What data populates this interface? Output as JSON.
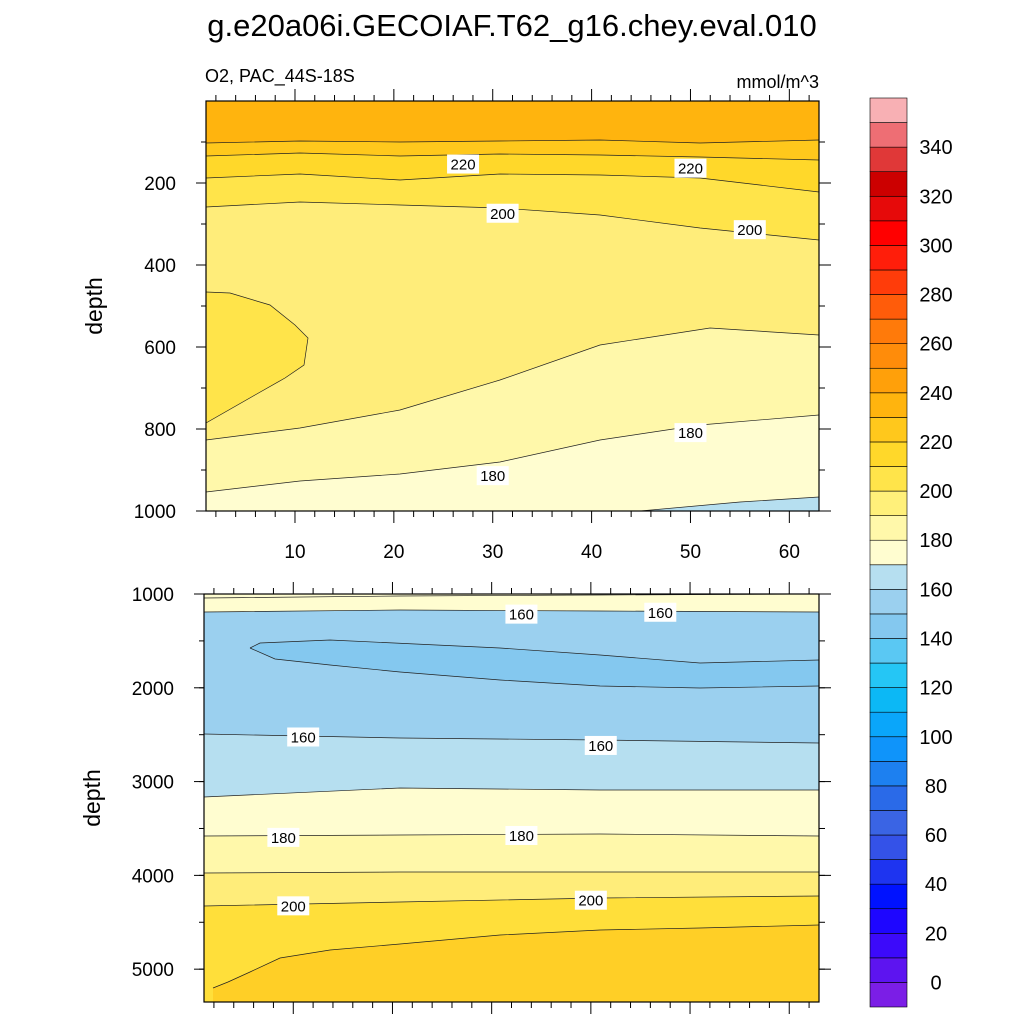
{
  "title": "g.e20a06i.GECOIAF.T62_g16.chey.eval.010",
  "chart_data": {
    "type": "contour",
    "variable": "O2",
    "region": "PAC_44S-18S",
    "left_string": "O2, PAC_44S-18S",
    "units": "mmol/m^3",
    "x_range": [
      1,
      63
    ],
    "x_ticks": [
      "10",
      "20",
      "30",
      "40",
      "50",
      "60"
    ],
    "contour_interval": 10,
    "panels": [
      {
        "name": "upper",
        "ylabel": "depth",
        "ylim": [
          0,
          1000
        ],
        "y_ticks": [
          "200",
          "400",
          "600",
          "800",
          "1000"
        ],
        "contour_labels": [
          {
            "text": "220",
            "x": 27,
            "depth": 155
          },
          {
            "text": "220",
            "x": 50,
            "depth": 165
          },
          {
            "text": "200",
            "x": 31,
            "depth": 275
          },
          {
            "text": "200",
            "x": 56,
            "depth": 315
          },
          {
            "text": "180",
            "x": 50,
            "depth": 810
          },
          {
            "text": "180",
            "x": 30,
            "depth": 915
          }
        ]
      },
      {
        "name": "lower",
        "ylabel": "depth",
        "ylim": [
          1000,
          5350
        ],
        "y_ticks": [
          "1000",
          "2000",
          "3000",
          "4000",
          "5000"
        ],
        "contour_labels": [
          {
            "text": "160",
            "x": 33,
            "depth": 1220
          },
          {
            "text": "160",
            "x": 47,
            "depth": 1200
          },
          {
            "text": "160",
            "x": 11,
            "depth": 2530
          },
          {
            "text": "160",
            "x": 41,
            "depth": 2620
          },
          {
            "text": "180",
            "x": 9,
            "depth": 3600
          },
          {
            "text": "180",
            "x": 33,
            "depth": 3580
          },
          {
            "text": "200",
            "x": 10,
            "depth": 4330
          },
          {
            "text": "200",
            "x": 40,
            "depth": 4270
          }
        ]
      }
    ],
    "colorbar": {
      "levels": [
        0,
        10,
        20,
        30,
        40,
        50,
        60,
        70,
        80,
        90,
        100,
        110,
        120,
        130,
        140,
        150,
        160,
        170,
        180,
        190,
        200,
        210,
        220,
        230,
        240,
        250,
        260,
        270,
        280,
        290,
        300,
        310,
        320,
        330,
        340,
        350
      ],
      "labels": [
        "0",
        "20",
        "40",
        "60",
        "80",
        "100",
        "120",
        "140",
        "160",
        "180",
        "200",
        "220",
        "240",
        "260",
        "280",
        "300",
        "320",
        "340"
      ],
      "colors": [
        "#7b1ee6",
        "#5d14f0",
        "#3c0afa",
        "#1e06ff",
        "#0012ff",
        "#1e34f0",
        "#3452e8",
        "#3a64e4",
        "#2a6ae8",
        "#1d80f0",
        "#0f94fa",
        "#0aa6fa",
        "#0cb8f5",
        "#25c6f5",
        "#5ac8f3",
        "#84c8ef",
        "#9bd0ef",
        "#b6dff0",
        "#fffdd0",
        "#fff8aa",
        "#fff07a",
        "#ffe44a",
        "#ffd82a",
        "#ffc81c",
        "#ffb40e",
        "#ffa00a",
        "#ff8c0a",
        "#ff7a0a",
        "#ff5c0a",
        "#ff3c0a",
        "#ff1e0a",
        "#ff0000",
        "#e60a0a",
        "#cc0000",
        "#e03838",
        "#ee6e74",
        "#f8b0b4"
      ]
    }
  }
}
